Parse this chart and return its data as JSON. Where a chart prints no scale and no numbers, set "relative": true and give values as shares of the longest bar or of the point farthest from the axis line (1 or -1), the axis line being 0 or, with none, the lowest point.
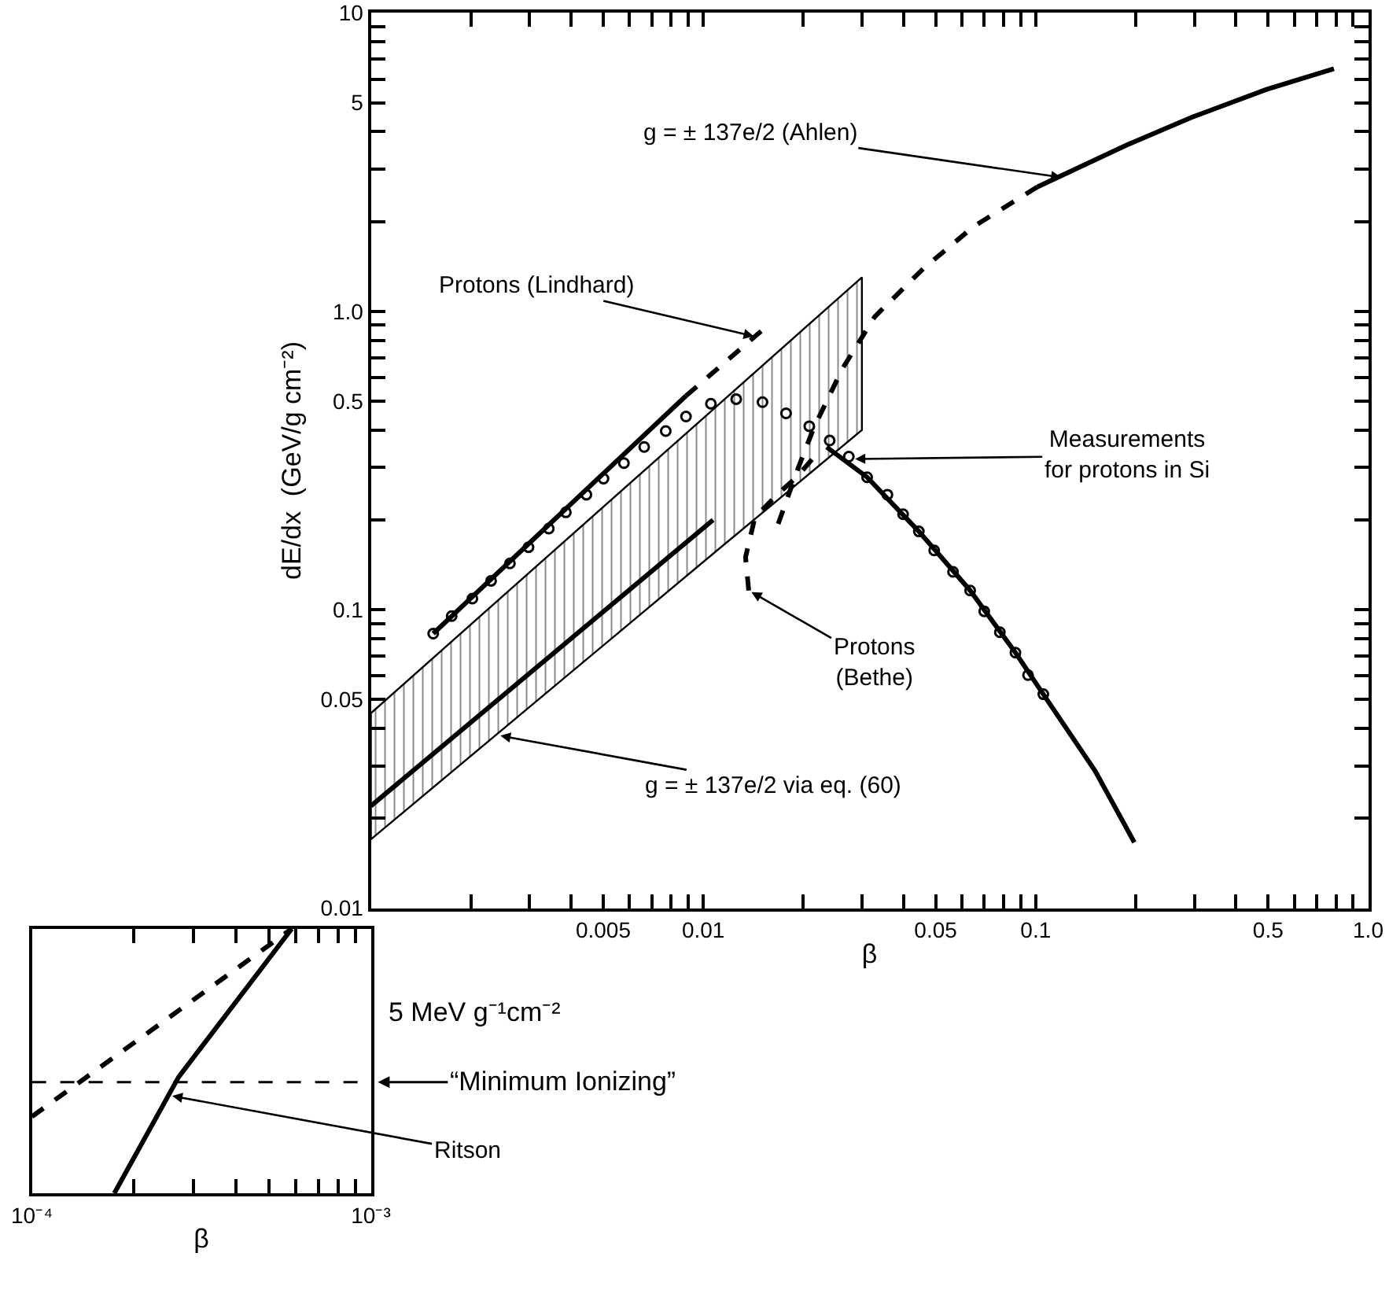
{
  "chart_data": [
    {
      "type": "line",
      "xlabel": "β",
      "ylabel": "dE/dx  (GeV/g cm⁻²)",
      "log": "xy",
      "xlim": [
        0.001,
        1.0
      ],
      "ylim": [
        0.01,
        10
      ],
      "xticks": [
        {
          "value": 0.002,
          "label": null
        },
        {
          "value": 0.003,
          "label": null
        },
        {
          "value": 0.004,
          "label": null
        },
        0.005,
        {
          "value": 0.006,
          "label": null
        },
        {
          "value": 0.007,
          "label": null
        },
        {
          "value": 0.008,
          "label": null
        },
        {
          "value": 0.009,
          "label": null
        },
        0.01,
        {
          "value": 0.02,
          "label": null
        },
        {
          "value": 0.03,
          "label": null
        },
        {
          "value": 0.04,
          "label": null
        },
        0.05,
        {
          "value": 0.06,
          "label": null
        },
        {
          "value": 0.07,
          "label": null
        },
        {
          "value": 0.08,
          "label": null
        },
        {
          "value": 0.09,
          "label": null
        },
        0.1,
        {
          "value": 0.2,
          "label": null
        },
        {
          "value": 0.3,
          "label": null
        },
        {
          "value": 0.4,
          "label": null
        },
        0.5,
        {
          "value": 0.6,
          "label": null
        },
        {
          "value": 0.7,
          "label": null
        },
        {
          "value": 0.8,
          "label": null
        },
        {
          "value": 0.9,
          "label": null
        },
        {
          "value": 1.0,
          "label": "1.0"
        }
      ],
      "yticks": [
        0.01,
        {
          "value": 0.02,
          "label": null
        },
        {
          "value": 0.03,
          "label": null
        },
        {
          "value": 0.04,
          "label": null
        },
        0.05,
        {
          "value": 0.06,
          "label": null
        },
        {
          "value": 0.07,
          "label": null
        },
        {
          "value": 0.08,
          "label": null
        },
        {
          "value": 0.09,
          "label": null
        },
        0.1,
        {
          "value": 0.2,
          "label": null
        },
        {
          "value": 0.3,
          "label": null
        },
        {
          "value": 0.4,
          "label": null
        },
        0.5,
        {
          "value": 0.6,
          "label": null
        },
        {
          "value": 0.7,
          "label": null
        },
        {
          "value": 0.8,
          "label": null
        },
        {
          "value": 0.9,
          "label": null
        },
        {
          "value": 1,
          "label": "1.0"
        },
        {
          "value": 2,
          "label": null
        },
        {
          "value": 3,
          "label": null
        },
        {
          "value": 4,
          "label": null
        },
        5,
        {
          "value": 6,
          "label": null
        },
        {
          "value": 7,
          "label": null
        },
        {
          "value": 8,
          "label": null
        },
        {
          "value": 9,
          "label": null
        },
        10
      ],
      "series": [
        {
          "line_style": "dashed",
          "color": "#000000",
          "x": [
            0.0168,
            0.0193,
            0.0215,
            0.0262,
            0.0328,
            0.0459,
            0.0649,
            0.101
          ],
          "values": [
            0.194,
            0.299,
            0.407,
            0.642,
            0.96,
            1.39,
            1.92,
            2.61
          ]
        },
        {
          "line_style": "solid",
          "color": "#000000",
          "x": [
            0.101,
            0.187,
            0.298,
            0.495,
            0.789
          ],
          "values": [
            2.61,
            3.6,
            4.49,
            5.54,
            6.5
          ]
        },
        {
          "line_style": "solid",
          "color": "#000000",
          "x": [
            0.00154,
            0.00887
          ],
          "values": [
            0.0832,
            0.521
          ]
        },
        {
          "line_style": "dashed",
          "color": "#000000",
          "x": [
            0.00887,
            0.0156
          ],
          "values": [
            0.521,
            0.895
          ]
        },
        {
          "type": "scatter",
          "marker": "circle",
          "color": "#000000",
          "x": [
            0.00154,
            0.00175,
            0.00202,
            0.0023,
            0.00262,
            0.00298,
            0.00343,
            0.00386,
            0.00445,
            0.00501,
            0.00577,
            0.00664,
            0.00771,
            0.00887,
            0.01054,
            0.01256,
            0.01507,
            0.01774,
            0.02084,
            0.024,
            0.0274,
            0.0311,
            0.0358,
            0.0399,
            0.0445,
            0.0495,
            0.0564,
            0.0635,
            0.07,
            0.078,
            0.0869,
            0.0948,
            0.1054
          ],
          "values": [
            0.0832,
            0.0952,
            0.109,
            0.125,
            0.143,
            0.162,
            0.187,
            0.212,
            0.243,
            0.275,
            0.31,
            0.351,
            0.397,
            0.444,
            0.49,
            0.508,
            0.496,
            0.455,
            0.412,
            0.369,
            0.326,
            0.278,
            0.243,
            0.209,
            0.183,
            0.158,
            0.134,
            0.116,
            0.0988,
            0.0841,
            0.0718,
            0.0604,
            0.0521
          ]
        },
        {
          "line_style": "dashed",
          "color": "#000000",
          "x": [
            0.0137,
            0.0134,
            0.0143,
            0.0168,
            0.0191,
            0.022
          ],
          "values": [
            0.116,
            0.15,
            0.204,
            0.245,
            0.278,
            0.334
          ]
        },
        {
          "line_style": "solid",
          "color": "#000000",
          "x": [
            0.0235,
            0.0311,
            0.0445,
            0.0635,
            0.0869,
            0.1054,
            0.151,
            0.198
          ],
          "values": [
            0.351,
            0.278,
            0.183,
            0.116,
            0.0718,
            0.0521,
            0.0288,
            0.0166
          ]
        },
        {
          "line_style": "solid",
          "color": "#000000",
          "x": [
            0.001,
            0.0107,
            0.03
          ],
          "values": [
            0.022,
            0.2,
            null
          ],
          "lower": [
            0.017,
            0.154,
            0.4
          ],
          "upper": [
            0.045,
            0.469,
            1.3
          ]
        }
      ],
      "annotations": [
        {
          "text": "g = ± 137e/2 (Ahlen)",
          "x": 0.122,
          "y": 2.8
        },
        {
          "text": "Protons (Lindhard)",
          "x": 0.0145,
          "y": 0.82
        },
        {
          "text": "Measurements\nfor protons in Si",
          "x": 0.028,
          "y": 0.32
        },
        {
          "text": "Protons\n(Bethe)",
          "x": 0.0137,
          "y": 0.116
        },
        {
          "text": "g = ± 137e/2 via eq. (60)",
          "x": 0.0024,
          "y": 0.038
        }
      ]
    },
    {
      "type": "line",
      "xlabel": "β",
      "log": "x",
      "relative": true,
      "xlim": [
        0.0001,
        0.001
      ],
      "tick_labels": "x",
      "xticks": [
        {
          "value": 0.0001,
          "label": "10⁻⁴"
        },
        {
          "value": 0.0002,
          "label": null
        },
        {
          "value": 0.0003,
          "label": null
        },
        {
          "value": 0.0004,
          "label": null
        },
        {
          "value": 0.0005,
          "label": null
        },
        {
          "value": 0.0006,
          "label": null
        },
        {
          "value": 0.0007,
          "label": null
        },
        {
          "value": 0.0008,
          "label": null
        },
        {
          "value": 0.0009,
          "label": null
        },
        {
          "value": 0.001,
          "label": "10⁻³"
        }
      ],
      "series": [
        {
          "line_style": "dashed",
          "color": "#000000",
          "x": [
            0.0001,
            0.000584
          ],
          "values": [
            0.29,
            1
          ]
        },
        {
          "line_style": "solid",
          "color": "#000000",
          "x": [
            0.000175,
            0.000271,
            0.000584
          ],
          "values": [
            0,
            0.44,
            1
          ]
        }
      ],
      "ref_lines": [
        {
          "axis": "y",
          "value": 0.42,
          "label": "“Minimum Ionizing”",
          "line_style": "dashed",
          "color": "#000000"
        }
      ],
      "annotations": [
        {
          "text": "Ritson",
          "x": 0.000254,
          "y": 0.37
        },
        "5 MeV g⁻¹cm⁻²"
      ]
    }
  ]
}
